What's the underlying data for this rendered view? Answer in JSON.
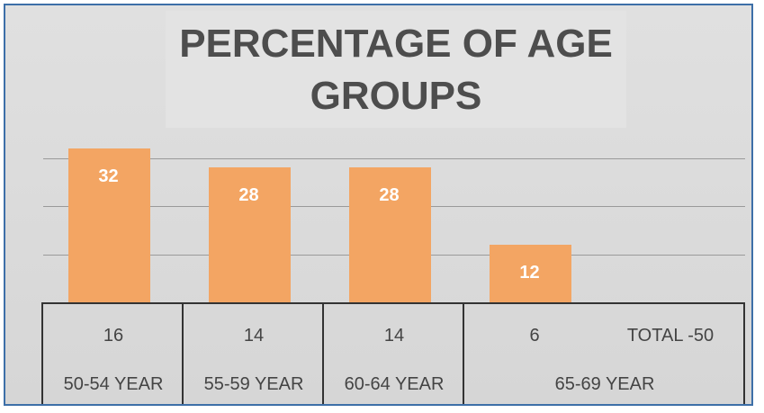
{
  "chart_data": {
    "type": "bar",
    "title": "PERCENTAGE OF AGE GROUPS",
    "title_lines": [
      "PERCENTAGE OF AGE",
      "GROUPS"
    ],
    "categories": [
      "50-54 YEAR",
      "55-59 YEAR",
      "60-64 YEAR",
      "65-69 YEAR"
    ],
    "values": [
      32,
      28,
      28,
      12
    ],
    "counts": [
      "16",
      "14",
      "14",
      "6"
    ],
    "total_label": "TOTAL -50",
    "ylim": [
      0,
      50
    ],
    "grid": true,
    "legend": "none",
    "colors": {
      "bar": "#f3a563",
      "title": "#4d4d4d",
      "frame": "#3d6fa8"
    }
  }
}
